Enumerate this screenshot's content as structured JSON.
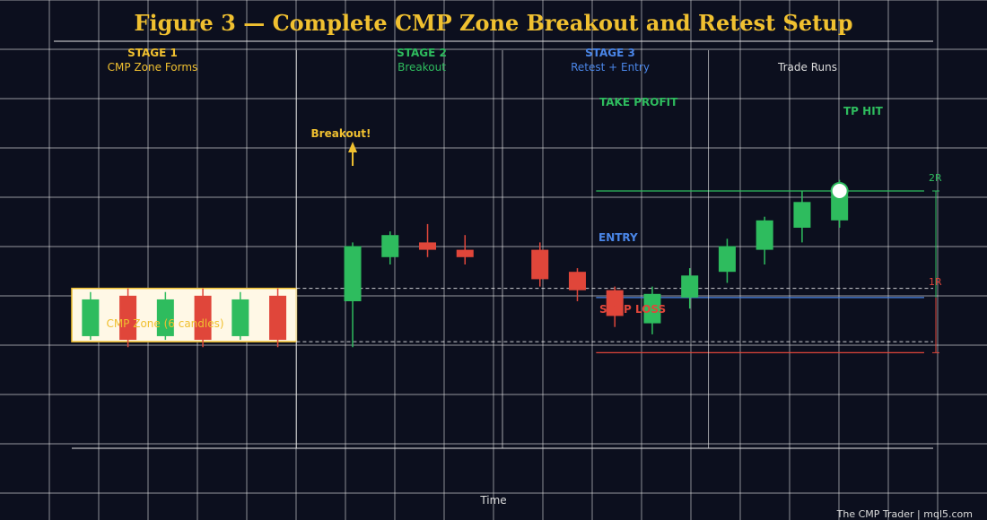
{
  "title": "Figure 3 — Complete CMP Zone Breakout and Retest Setup",
  "xlabel": "Time",
  "footer": "The CMP Trader  |  mql5.com",
  "stages": [
    {
      "heading": "STAGE 1",
      "subtitle": "CMP Zone Forms",
      "heading_color": "#f0c030",
      "subtitle_color": "#f0c030"
    },
    {
      "heading": "STAGE 2",
      "subtitle": "Breakout",
      "heading_color": "#2ebc5e",
      "subtitle_color": "#2ebc5e"
    },
    {
      "heading": "STAGE 3",
      "subtitle": "Retest + Entry",
      "heading_color": "#4a86e8",
      "subtitle_color": "#4a86e8"
    },
    {
      "heading": "",
      "subtitle": "Trade Runs",
      "heading_color": "#dddddd",
      "subtitle_color": "#dddddd"
    }
  ],
  "labels": {
    "zone": "CMP Zone (6 candles)",
    "breakout": "Breakout!",
    "take_profit": "TAKE PROFIT",
    "entry": "ENTRY",
    "stop_loss": "STOP LOSS",
    "tp_hit": "TP HIT",
    "reward_2r": "2R",
    "risk_1r": "1R"
  },
  "colors": {
    "background": "#0c0f1e",
    "grid": "#e6e6e6",
    "bull": "#2ebc5e",
    "bear": "#e0463a",
    "zone_fill": "#fff8e6",
    "zone_border": "#f0c030",
    "accent": "#f0c030",
    "entry": "#4a86e8",
    "text": "#dddddd"
  },
  "chart_data": {
    "type": "candlestick",
    "xlim": [
      -0.5,
      22.5
    ],
    "ylim": [
      0,
      10
    ],
    "grid": true,
    "zone": {
      "x_start": 0,
      "x_end": 5,
      "top": 4.35,
      "bottom": 2.9
    },
    "levels": {
      "take_profit": 7.0,
      "entry": 4.1,
      "stop_loss": 2.6,
      "zone_top": 4.35,
      "zone_bottom": 2.9
    },
    "candles": [
      {
        "x": 0,
        "open": 3.05,
        "close": 4.05,
        "high": 4.25,
        "low": 2.95
      },
      {
        "x": 1,
        "open": 4.15,
        "close": 2.95,
        "high": 4.35,
        "low": 2.75
      },
      {
        "x": 2,
        "open": 3.05,
        "close": 4.05,
        "high": 4.25,
        "low": 2.95
      },
      {
        "x": 3,
        "open": 4.15,
        "close": 2.95,
        "high": 4.35,
        "low": 2.75
      },
      {
        "x": 4,
        "open": 3.05,
        "close": 4.05,
        "high": 4.25,
        "low": 2.95
      },
      {
        "x": 5,
        "open": 4.15,
        "close": 2.95,
        "high": 4.35,
        "low": 2.75
      },
      {
        "x": 7,
        "open": 4.0,
        "close": 5.5,
        "high": 5.6,
        "low": 2.75
      },
      {
        "x": 8,
        "open": 5.2,
        "close": 5.8,
        "high": 5.9,
        "low": 5.0
      },
      {
        "x": 9,
        "open": 5.6,
        "close": 5.4,
        "high": 6.1,
        "low": 5.2
      },
      {
        "x": 10,
        "open": 5.4,
        "close": 5.2,
        "high": 5.8,
        "low": 5.0
      },
      {
        "x": 12,
        "open": 5.4,
        "close": 4.6,
        "high": 5.6,
        "low": 4.4
      },
      {
        "x": 13,
        "open": 4.8,
        "close": 4.3,
        "high": 4.9,
        "low": 4.0
      },
      {
        "x": 14,
        "open": 4.3,
        "close": 3.6,
        "high": 4.4,
        "low": 3.3
      },
      {
        "x": 15,
        "open": 3.4,
        "close": 4.2,
        "high": 4.4,
        "low": 3.1
      },
      {
        "x": 16,
        "open": 4.1,
        "close": 4.7,
        "high": 4.9,
        "low": 3.8
      },
      {
        "x": 17,
        "open": 4.8,
        "close": 5.5,
        "high": 5.7,
        "low": 4.5
      },
      {
        "x": 18,
        "open": 5.4,
        "close": 6.2,
        "high": 6.3,
        "low": 5.0
      },
      {
        "x": 19,
        "open": 6.0,
        "close": 6.7,
        "high": 7.0,
        "low": 5.6
      },
      {
        "x": 20,
        "open": 6.2,
        "close": 6.9,
        "high": 7.3,
        "low": 6.0
      }
    ]
  }
}
